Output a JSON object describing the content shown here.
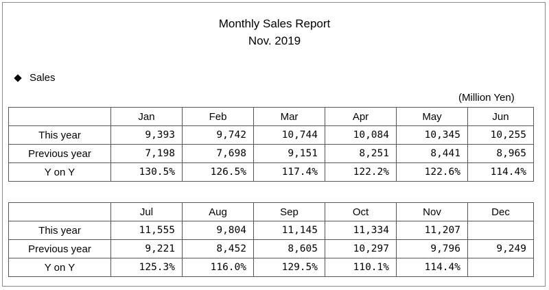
{
  "report": {
    "title": "Monthly Sales Report",
    "subtitle": "Nov. 2019",
    "section_label": "Sales",
    "unit": "(Million  Yen)",
    "row_labels": [
      "This year",
      "Previous year",
      "Y on Y"
    ],
    "tables": [
      {
        "months": [
          "Jan",
          "Feb",
          "Mar",
          "Apr",
          "May",
          "Jun"
        ],
        "this_year": [
          "9,393",
          "9,742",
          "10,744",
          "10,084",
          "10,345",
          "10,255"
        ],
        "previous_year": [
          "7,198",
          "7,698",
          "9,151",
          "8,251",
          "8,441",
          "8,965"
        ],
        "y_on_y": [
          "130.5%",
          "126.5%",
          "117.4%",
          "122.2%",
          "122.6%",
          "114.4%"
        ]
      },
      {
        "months": [
          "Jul",
          "Aug",
          "Sep",
          "Oct",
          "Nov",
          "Dec"
        ],
        "this_year": [
          "11,555",
          "9,804",
          "11,145",
          "11,334",
          "11,207",
          ""
        ],
        "previous_year": [
          "9,221",
          "8,452",
          "8,605",
          "10,297",
          "9,796",
          "9,249"
        ],
        "y_on_y": [
          "125.3%",
          "116.0%",
          "129.5%",
          "110.1%",
          "114.4%",
          ""
        ]
      }
    ]
  }
}
